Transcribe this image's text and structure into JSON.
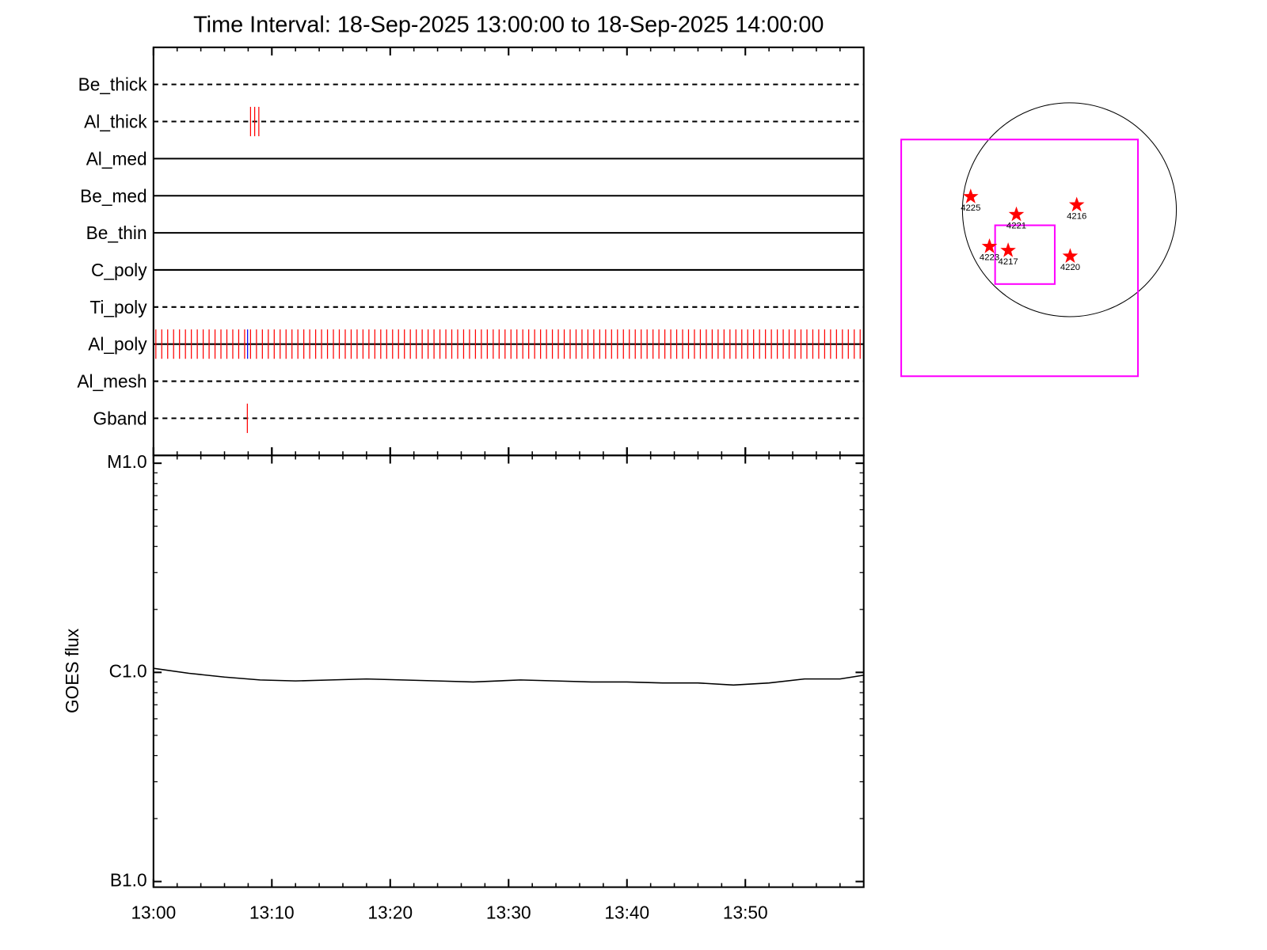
{
  "chart_data": [
    {
      "type": "timeline",
      "title": "Time Interval: 18-Sep-2025 13:00:00 to 18-Sep-2025 14:00:00",
      "xlim": [
        0,
        60
      ],
      "xticks": [
        0,
        10,
        20,
        30,
        40,
        50
      ],
      "xminorticks": [
        2,
        4,
        6,
        8,
        12,
        14,
        16,
        18,
        22,
        24,
        26,
        28,
        32,
        34,
        36,
        38,
        42,
        44,
        46,
        48,
        52,
        54,
        56,
        58
      ],
      "series": [
        {
          "name": "Be_thick",
          "line": "dashed",
          "marks": []
        },
        {
          "name": "Al_thick",
          "line": "dashed",
          "marks": [
            {
              "color": "#ff0000",
              "x": [
                8.2,
                8.55,
                8.9
              ]
            }
          ]
        },
        {
          "name": "Al_med",
          "line": "solid",
          "marks": []
        },
        {
          "name": "Be_med",
          "line": "solid",
          "marks": []
        },
        {
          "name": "Be_thin",
          "line": "solid",
          "marks": []
        },
        {
          "name": "C_poly",
          "line": "solid",
          "marks": []
        },
        {
          "name": "Ti_poly",
          "line": "dashed",
          "marks": []
        },
        {
          "name": "Al_poly",
          "line": "solid",
          "marks": [
            {
              "color": "#ff0000",
              "x": [
                0.2,
                0.7,
                1.2,
                1.7,
                2.2,
                2.7,
                3.2,
                3.7,
                4.2,
                4.7,
                5.2,
                5.7,
                6.2,
                6.7,
                7.2,
                7.7,
                8.2,
                8.7,
                9.2,
                9.7,
                10.2,
                10.7,
                11.2,
                11.7,
                12.2,
                12.7,
                13.2,
                13.7,
                14.2,
                14.7,
                15.2,
                15.7,
                16.2,
                16.7,
                17.2,
                17.7,
                18.2,
                18.7,
                19.2,
                19.7,
                20.2,
                20.7,
                21.2,
                21.7,
                22.2,
                22.7,
                23.2,
                23.7,
                24.2,
                24.7,
                25.2,
                25.7,
                26.2,
                26.7,
                27.2,
                27.7,
                28.2,
                28.7,
                29.2,
                29.7,
                30.2,
                30.7,
                31.2,
                31.7,
                32.2,
                32.7,
                33.2,
                33.7,
                34.2,
                34.7,
                35.2,
                35.7,
                36.2,
                36.7,
                37.2,
                37.7,
                38.2,
                38.7,
                39.2,
                39.7,
                40.2,
                40.7,
                41.2,
                41.7,
                42.2,
                42.7,
                43.2,
                43.7,
                44.2,
                44.7,
                45.2,
                45.7,
                46.2,
                46.7,
                47.2,
                47.7,
                48.2,
                48.7,
                49.2,
                49.7,
                50.2,
                50.7,
                51.2,
                51.7,
                52.2,
                52.7,
                53.2,
                53.7,
                54.2,
                54.7,
                55.2,
                55.7,
                56.2,
                56.7,
                57.2,
                57.7,
                58.2,
                58.7,
                59.2,
                59.7
              ]
            },
            {
              "color": "#0000ff",
              "x": [
                7.95
              ]
            }
          ]
        },
        {
          "name": "Al_mesh",
          "line": "dashed",
          "marks": []
        },
        {
          "name": "Gband",
          "line": "dashed",
          "marks": [
            {
              "color": "#ff0000",
              "x": [
                7.93
              ]
            }
          ]
        }
      ]
    },
    {
      "type": "line",
      "ylabel": "GOES flux",
      "log_scale": true,
      "color": "#000000",
      "xlim": [
        0,
        60
      ],
      "xticks": [
        {
          "value": 0,
          "label": "13:00"
        },
        {
          "value": 10,
          "label": "13:10"
        },
        {
          "value": 20,
          "label": "13:20"
        },
        {
          "value": 30,
          "label": "13:30"
        },
        {
          "value": 40,
          "label": "13:40"
        },
        {
          "value": 50,
          "label": "13:50"
        }
      ],
      "xminorticks": [
        2,
        4,
        6,
        8,
        12,
        14,
        16,
        18,
        22,
        24,
        26,
        28,
        32,
        34,
        36,
        38,
        42,
        44,
        46,
        48,
        52,
        54,
        56,
        58
      ],
      "ylim": [
        9.4e-08,
        1.09e-05
      ],
      "yticks": [
        {
          "value": 1e-07,
          "label": "B1.0"
        },
        {
          "value": 1e-06,
          "label": "C1.0"
        },
        {
          "value": 1e-05,
          "label": "M1.0"
        }
      ],
      "yminorticks": [
        2e-07,
        3e-07,
        4e-07,
        5e-07,
        6e-07,
        7e-07,
        8e-07,
        9e-07,
        2e-06,
        3e-06,
        4e-06,
        5e-06,
        6e-06,
        7e-06,
        8e-06,
        9e-06
      ],
      "x": [
        0,
        3,
        6,
        9,
        12,
        15,
        18,
        21,
        24,
        27,
        31,
        34,
        37,
        40,
        43,
        46,
        49,
        52,
        55,
        58,
        60
      ],
      "values": [
        1.046e-06,
        9.9e-07,
        9.5e-07,
        9.2e-07,
        9.1e-07,
        9.2e-07,
        9.3e-07,
        9.2e-07,
        9.1e-07,
        9e-07,
        9.2e-07,
        9.1e-07,
        9e-07,
        9e-07,
        8.9e-07,
        8.9e-07,
        8.7e-07,
        8.9e-07,
        9.3e-07,
        9.3e-07,
        9.7e-07
      ]
    },
    {
      "type": "map",
      "xlim": [
        -1595,
        1088
      ],
      "ylim": [
        -1617,
        1066
      ],
      "disk_radius": 950,
      "disk_color": "#000000",
      "box_color": "#ff00ff",
      "boxes": [
        {
          "x": [
            -1494,
            609
          ],
          "y": [
            -1479,
            624
          ]
        },
        {
          "x": [
            -660,
            -130
          ],
          "y": [
            -660,
            -138
          ]
        }
      ],
      "star_color": "#ff0000",
      "labels": [
        "4225",
        "4221",
        "4216",
        "4223",
        "4217",
        "4220"
      ],
      "x": [
        -877,
        -471,
        65,
        -710,
        -544,
        7
      ],
      "values": [
        116,
        -43,
        43,
        -326,
        -362,
        -413
      ]
    }
  ]
}
